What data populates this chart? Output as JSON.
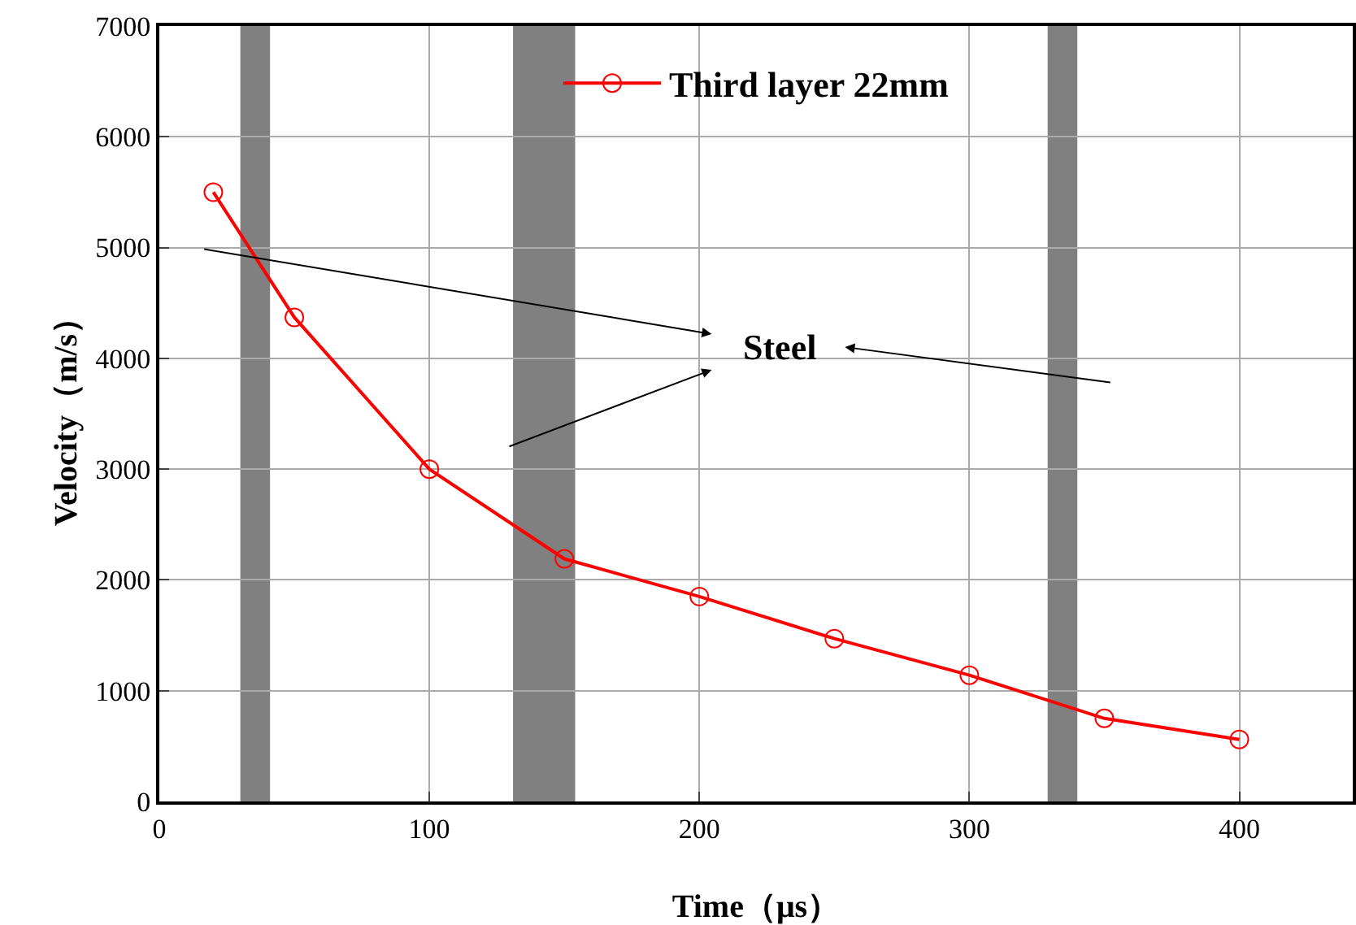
{
  "chart_data": {
    "type": "line",
    "xlabel": "Time（μs）",
    "ylabel": "Velocity（m/s）",
    "x": [
      20,
      50,
      100,
      150,
      200,
      250,
      300,
      350,
      400
    ],
    "series": [
      {
        "name": "Third layer 22mm",
        "color": "#ff0000",
        "values": [
          5500,
          4370,
          3000,
          2190,
          1850,
          1470,
          1140,
          750,
          560
        ]
      }
    ],
    "xlim": [
      0,
      442
    ],
    "xticks": [
      0,
      100,
      200,
      300,
      400
    ],
    "ylim": [
      0,
      7000
    ],
    "yticks": [
      0,
      1000,
      2000,
      3000,
      4000,
      5000,
      6000,
      7000
    ],
    "bands": [
      {
        "axis": "x",
        "from": 30,
        "to": 41,
        "color": "#808080"
      },
      {
        "axis": "x",
        "from": 131,
        "to": 154,
        "color": "#808080"
      },
      {
        "axis": "x",
        "from": 329,
        "to": 340,
        "color": "#808080"
      }
    ],
    "annotations": [
      "Steel"
    ],
    "grid": true,
    "legend": "top",
    "marker": "circle",
    "line_style": "solid"
  }
}
